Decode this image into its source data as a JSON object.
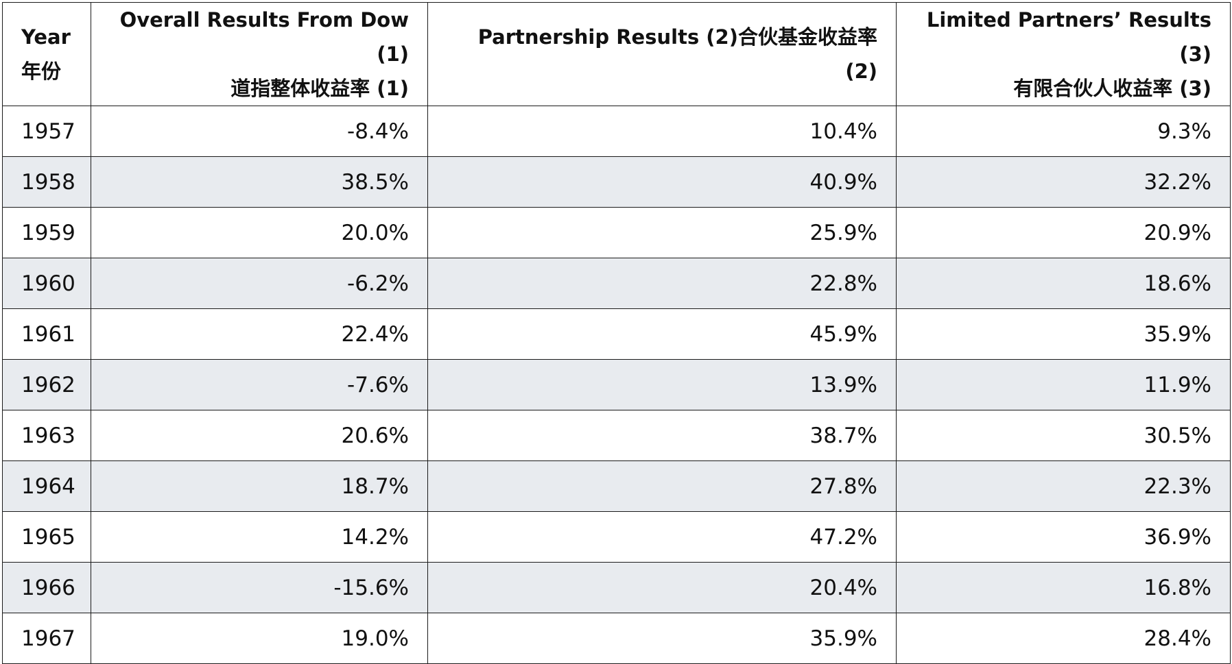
{
  "headers": {
    "year": {
      "line1": "Year",
      "line2": "年份"
    },
    "dow": {
      "line1": "Overall Results From Dow (1)",
      "line2": "道指整体收益率 (1)"
    },
    "partnership": {
      "part1": "Partnership Results (2)",
      "part2": "合伙基金收益率 (2)"
    },
    "limited": {
      "line1": "Limited Partners’ Results (3)",
      "line2": "有限合伙人收益率 (3)"
    }
  },
  "rows": [
    {
      "year": "1957",
      "dow": "-8.4%",
      "partnership": "10.4%",
      "limited": "9.3%"
    },
    {
      "year": "1958",
      "dow": "38.5%",
      "partnership": "40.9%",
      "limited": "32.2%"
    },
    {
      "year": "1959",
      "dow": "20.0%",
      "partnership": "25.9%",
      "limited": "20.9%"
    },
    {
      "year": "1960",
      "dow": "-6.2%",
      "partnership": "22.8%",
      "limited": "18.6%"
    },
    {
      "year": "1961",
      "dow": "22.4%",
      "partnership": "45.9%",
      "limited": "35.9%"
    },
    {
      "year": "1962",
      "dow": "-7.6%",
      "partnership": "13.9%",
      "limited": "11.9%"
    },
    {
      "year": "1963",
      "dow": "20.6%",
      "partnership": "38.7%",
      "limited": "30.5%"
    },
    {
      "year": "1964",
      "dow": "18.7%",
      "partnership": "27.8%",
      "limited": "22.3%"
    },
    {
      "year": "1965",
      "dow": "14.2%",
      "partnership": "47.2%",
      "limited": "36.9%"
    },
    {
      "year": "1966",
      "dow": "-15.6%",
      "partnership": "20.4%",
      "limited": "16.8%"
    },
    {
      "year": "1967",
      "dow": "19.0%",
      "partnership": "35.9%",
      "limited": "28.4%"
    }
  ],
  "colors": {
    "border": "#1a1a1a",
    "stripe": "#e8ebef",
    "background": "#ffffff"
  }
}
